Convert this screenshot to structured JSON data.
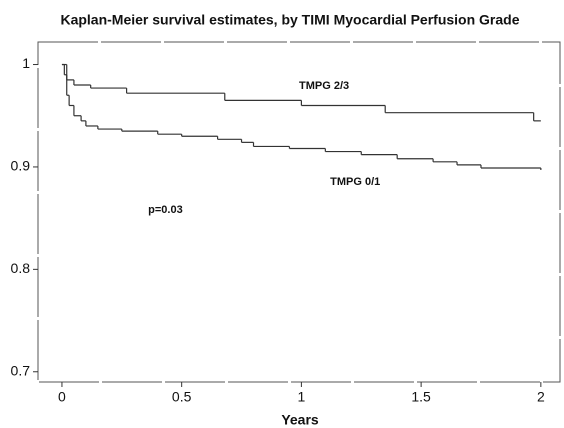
{
  "chart_data": {
    "type": "step",
    "title": "Kaplan-Meier survival estimates, by TIMI Myocardial Perfusion Grade",
    "x_label": "Years",
    "xlim": [
      -0.1,
      2.08
    ],
    "ylim": [
      0.69,
      1.022
    ],
    "xticks": [
      0,
      0.5,
      1,
      1.5,
      2
    ],
    "yticks": [
      0.7,
      0.8,
      0.9,
      1
    ],
    "series": [
      {
        "color": "#333333",
        "x": [
          0,
          0.02,
          0.05,
          0.12,
          0.27,
          0.68,
          1.0,
          1.35,
          1.97,
          2.0
        ],
        "values": [
          1,
          0.985,
          0.98,
          0.977,
          0.972,
          0.965,
          0.96,
          0.953,
          0.945,
          0.945
        ]
      },
      {
        "color": "#333333",
        "x": [
          0,
          0.01,
          0.02,
          0.03,
          0.05,
          0.08,
          0.1,
          0.15,
          0.25,
          0.4,
          0.5,
          0.65,
          0.75,
          0.8,
          0.95,
          1.1,
          1.25,
          1.4,
          1.55,
          1.65,
          1.75,
          2.0
        ],
        "values": [
          1,
          0.99,
          0.97,
          0.96,
          0.95,
          0.945,
          0.94,
          0.937,
          0.935,
          0.932,
          0.93,
          0.927,
          0.924,
          0.92,
          0.918,
          0.915,
          0.912,
          0.908,
          0.905,
          0.902,
          0.899,
          0.897
        ]
      }
    ],
    "annotations": [
      {
        "text": "TMPG 2/3",
        "x": 0.99,
        "y": 0.979
      },
      {
        "text": "TMPG 0/1",
        "x": 1.12,
        "y": 0.885
      },
      {
        "text": "p=0.03",
        "x": 0.36,
        "y": 0.858
      }
    ]
  }
}
